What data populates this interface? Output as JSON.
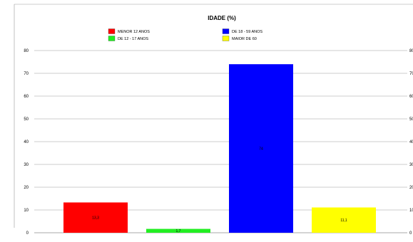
{
  "chart_data": {
    "type": "bar",
    "title": "IDADE (%)",
    "categories": [
      "MENOR 12 ANOS",
      "DE 12 - 17 ANOS",
      "DE 18 - 59 ANOS",
      "MAIOR DE 60"
    ],
    "values": [
      13.3,
      1.7,
      74,
      11.1
    ],
    "data_labels": [
      "13,3",
      "1,7",
      "74",
      "11,1"
    ],
    "colors": [
      "#ff0000",
      "#22ee22",
      "#0000ff",
      "#ffff00"
    ],
    "ylim": [
      0,
      80
    ],
    "yticks": [
      0,
      10,
      20,
      30,
      40,
      50,
      60,
      70,
      80
    ],
    "grid": true,
    "legend": {
      "position": "top",
      "entries": [
        {
          "label": "MENOR 12 ANOS",
          "color": "#ff0000"
        },
        {
          "label": "DE 18 - 59 ANOS",
          "color": "#0000ff"
        },
        {
          "label": "DE 12 - 17 ANOS",
          "color": "#22ee22"
        },
        {
          "label": "MAIOR DE 60",
          "color": "#ffff00"
        }
      ]
    }
  }
}
